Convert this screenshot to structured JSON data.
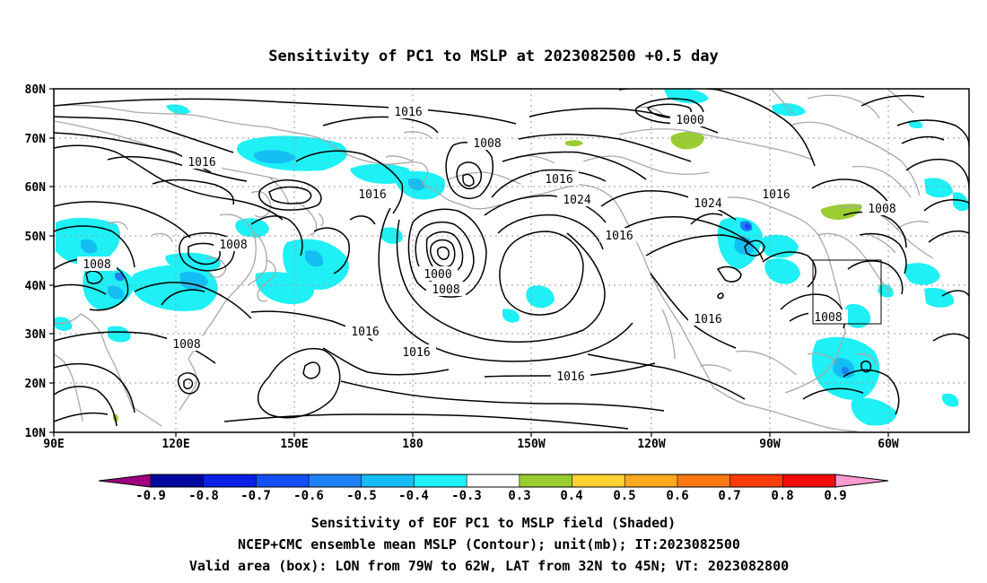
{
  "title": "Sensitivity of PC1 to MSLP at 2023082500 +0.5 day",
  "map": {
    "lat_labels": [
      "80N",
      "70N",
      "60N",
      "50N",
      "40N",
      "30N",
      "20N",
      "10N"
    ],
    "lon_labels": [
      "90E",
      "120E",
      "150E",
      "180",
      "150W",
      "120W",
      "90W",
      "60W"
    ],
    "valid_box": {
      "lon_from": "79W",
      "lon_to": "62W",
      "lat_from": "32N",
      "lat_to": "45N"
    },
    "contour_labels": [
      {
        "text": "1016"
      },
      {
        "text": "1000"
      },
      {
        "text": "1008"
      },
      {
        "text": "1016"
      },
      {
        "text": "1016"
      },
      {
        "text": "1016"
      },
      {
        "text": "1024"
      },
      {
        "text": "1024"
      },
      {
        "text": "1016"
      },
      {
        "text": "1008"
      },
      {
        "text": "1008"
      },
      {
        "text": "1008"
      },
      {
        "text": "1008"
      },
      {
        "text": "1000"
      },
      {
        "text": "1008"
      },
      {
        "text": "1016"
      },
      {
        "text": "1016"
      },
      {
        "text": "1016"
      },
      {
        "text": "1016"
      },
      {
        "text": "1016"
      },
      {
        "text": "1008"
      }
    ]
  },
  "colorbar": {
    "labels": [
      "-0.9",
      "-0.8",
      "-0.7",
      "-0.6",
      "-0.5",
      "-0.4",
      "-0.3",
      "0.3",
      "0.4",
      "0.5",
      "0.6",
      "0.7",
      "0.8",
      "0.9"
    ],
    "colors": [
      "#a0007c",
      "#0008a0",
      "#0a20e6",
      "#1450f5",
      "#1e82f5",
      "#14bef5",
      "#1ef0f5",
      "#ffffff",
      "#9acd32",
      "#ffd232",
      "#ffaa1e",
      "#ff7814",
      "#ff3c0a",
      "#f50a0a",
      "#ff9bd2"
    ]
  },
  "captions": {
    "line1": "Sensitivity of EOF PC1 to MSLP field (Shaded)",
    "line2": "NCEP+CMC ensemble mean MSLP (Contour); unit(mb); IT:2023082500",
    "line3": "Valid area (box): LON from 79W to 62W, LAT from 32N to 45N; VT: 2023082800"
  }
}
